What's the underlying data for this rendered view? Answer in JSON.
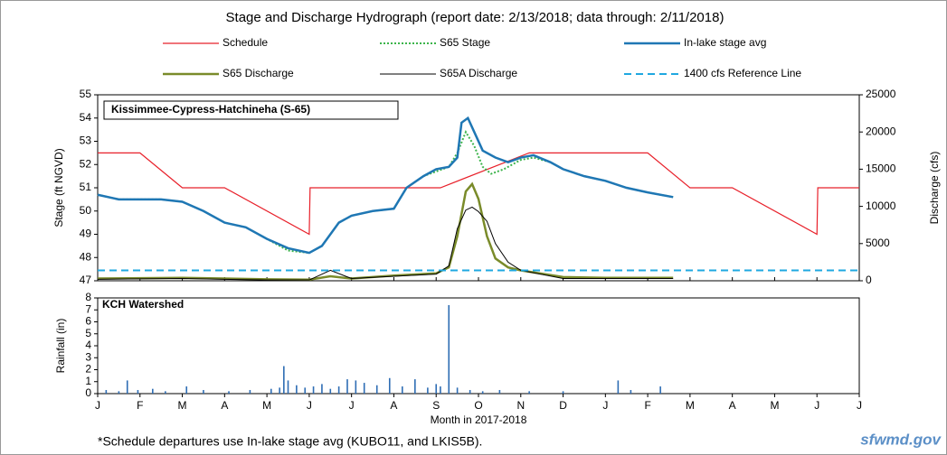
{
  "chart_data": [
    {
      "type": "line",
      "title": "Stage and Discharge Hydrograph  (report date: 2/13/2018;  data through:  2/11/2018)",
      "annotation": "Kissimmee-Cypress-Hatchineha (S-65)",
      "ylabel": "Stage (ft NGVD)",
      "y2label": "Discharge (cfs)",
      "xlim": [
        0,
        18
      ],
      "ylim": [
        47,
        55
      ],
      "yticks": [
        47,
        48,
        49,
        50,
        51,
        52,
        53,
        54,
        55
      ],
      "y2lim": [
        0,
        25000
      ],
      "y2ticks": [
        0,
        5000,
        10000,
        15000,
        20000,
        25000
      ],
      "series": [
        {
          "name": "Schedule",
          "color": "#e8202a",
          "style": "solid",
          "linewidth": 1.2,
          "x": [
            0,
            1,
            2,
            3,
            5,
            5.02,
            8.1,
            10.2,
            13,
            14,
            15,
            17,
            17.02,
            18
          ],
          "values": [
            52.5,
            52.5,
            51,
            51,
            49,
            51,
            51,
            52.5,
            52.5,
            51,
            51,
            49,
            51,
            51
          ]
        },
        {
          "name": "S65 Stage",
          "color": "#3cb44b",
          "style": "dotted",
          "linewidth": 2,
          "x": [
            0,
            0.5,
            1,
            1.5,
            2,
            2.5,
            3,
            3.5,
            4,
            4.5,
            5,
            5.3,
            5.7,
            6,
            6.5,
            7,
            7.3,
            7.7,
            8,
            8.3,
            8.5,
            8.7,
            8.9,
            9.1,
            9.3,
            9.6,
            10,
            10.3,
            10.7,
            11,
            11.5,
            12,
            12.5,
            13,
            13.6
          ],
          "values": [
            50.7,
            50.5,
            50.5,
            50.5,
            50.4,
            50,
            49.5,
            49.3,
            48.8,
            48.3,
            48.2,
            48.5,
            49.5,
            49.8,
            50,
            50.1,
            51,
            51.5,
            51.7,
            51.9,
            52.5,
            53.4,
            52.8,
            51.9,
            51.6,
            51.8,
            52.2,
            52.3,
            52.1,
            51.8,
            51.5,
            51.3,
            51,
            50.8,
            50.6
          ]
        },
        {
          "name": "In-lake stage avg",
          "color": "#1f77b4",
          "style": "solid",
          "linewidth": 2.5,
          "x": [
            0,
            0.5,
            1,
            1.5,
            2,
            2.5,
            3,
            3.5,
            4,
            4.5,
            5,
            5.3,
            5.7,
            6,
            6.5,
            7,
            7.3,
            7.7,
            8,
            8.3,
            8.5,
            8.6,
            8.75,
            8.9,
            9.1,
            9.4,
            9.7,
            10,
            10.3,
            10.7,
            11,
            11.5,
            12,
            12.5,
            13,
            13.6
          ],
          "values": [
            50.7,
            50.5,
            50.5,
            50.5,
            50.4,
            50,
            49.5,
            49.3,
            48.8,
            48.4,
            48.2,
            48.5,
            49.5,
            49.8,
            50,
            50.1,
            51,
            51.5,
            51.8,
            51.9,
            52.3,
            53.8,
            54,
            53.4,
            52.6,
            52.3,
            52.1,
            52.3,
            52.4,
            52.1,
            51.8,
            51.5,
            51.3,
            51,
            50.8,
            50.6
          ]
        },
        {
          "name": "S65 Discharge",
          "color": "#7a8b2a",
          "style": "solid",
          "linewidth": 2.5,
          "axis": "y2",
          "x": [
            0,
            2,
            4,
            5,
            5.5,
            6,
            7,
            8,
            8.3,
            8.5,
            8.7,
            8.85,
            9,
            9.2,
            9.4,
            9.7,
            10,
            11,
            12,
            13,
            13.6
          ],
          "values": [
            300,
            400,
            200,
            150,
            600,
            300,
            700,
            1000,
            1800,
            6000,
            12000,
            13000,
            11000,
            6000,
            3000,
            1800,
            1400,
            500,
            400,
            400,
            400
          ]
        },
        {
          "name": "S65A Discharge",
          "color": "#000000",
          "style": "solid",
          "linewidth": 1,
          "axis": "y2",
          "x": [
            0,
            2,
            4,
            5,
            5.5,
            6,
            7,
            8,
            8.3,
            8.5,
            8.7,
            8.85,
            9,
            9.2,
            9.4,
            9.7,
            10,
            11,
            12,
            13,
            13.6
          ],
          "values": [
            200,
            300,
            100,
            100,
            1400,
            300,
            600,
            900,
            2000,
            7000,
            9500,
            9900,
            9300,
            8000,
            5000,
            2500,
            1400,
            300,
            300,
            300,
            300
          ]
        },
        {
          "name": "1400 cfs Reference Line",
          "color": "#1fa8e0",
          "style": "dashed",
          "linewidth": 2,
          "axis": "y2",
          "x": [
            0,
            18
          ],
          "values": [
            1400,
            1400
          ]
        }
      ]
    },
    {
      "type": "bar",
      "annotation": "KCH Watershed",
      "ylabel": "Rainfall (in)",
      "xlabel": "Month in 2017-2018",
      "xlim": [
        0,
        18
      ],
      "xticks": [
        {
          "value": 0,
          "label": "J"
        },
        {
          "value": 1,
          "label": "F"
        },
        {
          "value": 2,
          "label": "M"
        },
        {
          "value": 3,
          "label": "A"
        },
        {
          "value": 4,
          "label": "M"
        },
        {
          "value": 5,
          "label": "J"
        },
        {
          "value": 6,
          "label": "J"
        },
        {
          "value": 7,
          "label": "A"
        },
        {
          "value": 8,
          "label": "S"
        },
        {
          "value": 9,
          "label": "O"
        },
        {
          "value": 10,
          "label": "N"
        },
        {
          "value": 11,
          "label": "D"
        },
        {
          "value": 12,
          "label": "J"
        },
        {
          "value": 13,
          "label": "F"
        },
        {
          "value": 14,
          "label": "M"
        },
        {
          "value": 15,
          "label": "A"
        },
        {
          "value": 16,
          "label": "M"
        },
        {
          "value": 17,
          "label": "J"
        },
        {
          "value": 18,
          "label": "J"
        }
      ],
      "ylim": [
        0,
        8
      ],
      "yticks": [
        0,
        1,
        2,
        3,
        4,
        5,
        6,
        7,
        8
      ],
      "color": "#2e6db4",
      "x": [
        0.2,
        0.5,
        0.7,
        0.95,
        1.3,
        1.6,
        2.1,
        2.5,
        3.1,
        3.6,
        4.1,
        4.3,
        4.4,
        4.5,
        4.7,
        4.9,
        5.1,
        5.3,
        5.5,
        5.7,
        5.9,
        6.1,
        6.3,
        6.6,
        6.9,
        7.2,
        7.5,
        7.8,
        8.0,
        8.1,
        8.3,
        8.5,
        8.8,
        9.1,
        9.5,
        10.2,
        11.0,
        12.3,
        12.6,
        13.3
      ],
      "values": [
        0.3,
        0.2,
        1.1,
        0.3,
        0.4,
        0.2,
        0.6,
        0.3,
        0.2,
        0.3,
        0.4,
        0.5,
        2.3,
        1.1,
        0.7,
        0.5,
        0.6,
        0.8,
        0.4,
        0.6,
        1.2,
        1.1,
        0.9,
        0.7,
        1.3,
        0.6,
        1.2,
        0.5,
        0.8,
        0.6,
        7.4,
        0.5,
        0.3,
        0.2,
        0.3,
        0.2,
        0.2,
        1.1,
        0.3,
        0.6
      ]
    }
  ],
  "footnote": "*Schedule departures use In-lake stage avg (KUBO11, and LKIS5B).",
  "logo": "sfwmd.gov"
}
